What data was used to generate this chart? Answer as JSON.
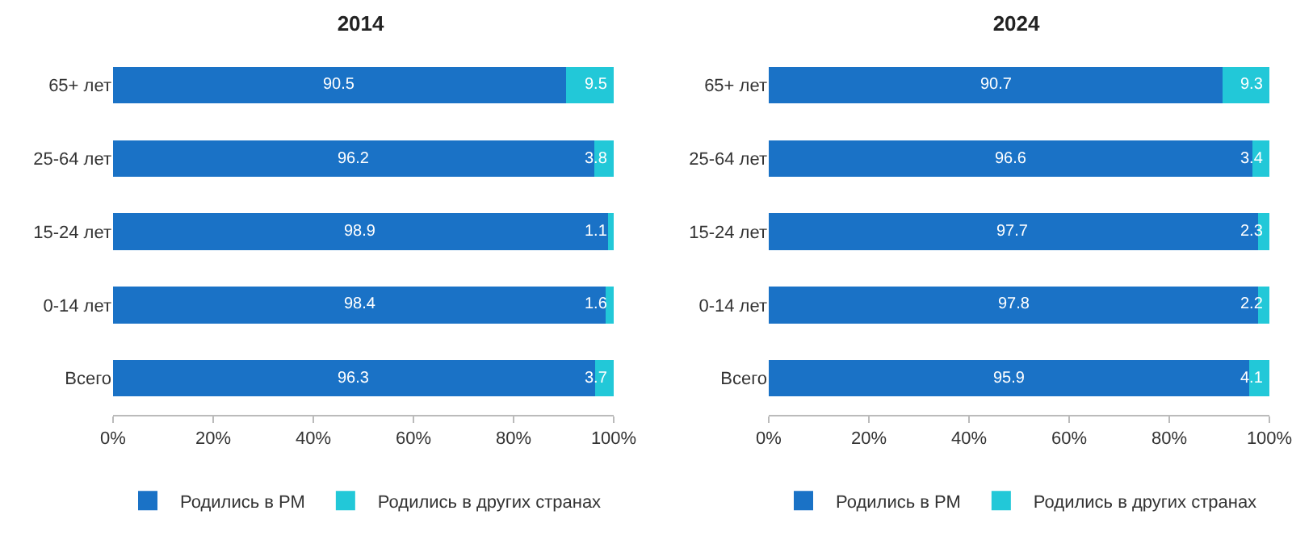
{
  "chart_data": [
    {
      "type": "bar",
      "title": "2014",
      "orientation": "horizontal",
      "stacked": true,
      "data_labels": true,
      "legend": "bottom",
      "categories": [
        "65+ лет",
        "25-64 лет",
        "15-24 лет",
        "0-14 лет",
        "Всего"
      ],
      "series": [
        {
          "name": "Родились в РМ",
          "color": "#1a72c6",
          "values": [
            90.5,
            96.2,
            98.9,
            98.4,
            96.3
          ]
        },
        {
          "name": "Родились в других странах",
          "color": "#22c8d8",
          "values": [
            9.5,
            3.8,
            1.1,
            1.6,
            3.7
          ]
        }
      ],
      "xlim": [
        0,
        100
      ],
      "xticks": [
        {
          "value": 0,
          "label": "0%"
        },
        {
          "value": 20,
          "label": "20%"
        },
        {
          "value": 40,
          "label": "40%"
        },
        {
          "value": 60,
          "label": "60%"
        },
        {
          "value": 80,
          "label": "80%"
        },
        {
          "value": 100,
          "label": "100%"
        }
      ]
    },
    {
      "type": "bar",
      "title": "2024",
      "orientation": "horizontal",
      "stacked": true,
      "data_labels": true,
      "legend": "bottom",
      "categories": [
        "65+ лет",
        "25-64 лет",
        "15-24 лет",
        "0-14 лет",
        "Всего"
      ],
      "series": [
        {
          "name": "Родились в РМ",
          "color": "#1a72c6",
          "values": [
            90.7,
            96.6,
            97.7,
            97.8,
            95.9
          ]
        },
        {
          "name": "Родились в других странах",
          "color": "#22c8d8",
          "values": [
            9.3,
            3.4,
            2.3,
            2.2,
            4.1
          ]
        }
      ],
      "xlim": [
        0,
        100
      ],
      "xticks": [
        {
          "value": 0,
          "label": "0%"
        },
        {
          "value": 20,
          "label": "20%"
        },
        {
          "value": 40,
          "label": "40%"
        },
        {
          "value": 60,
          "label": "60%"
        },
        {
          "value": 80,
          "label": "80%"
        },
        {
          "value": 100,
          "label": "100%"
        }
      ]
    }
  ]
}
